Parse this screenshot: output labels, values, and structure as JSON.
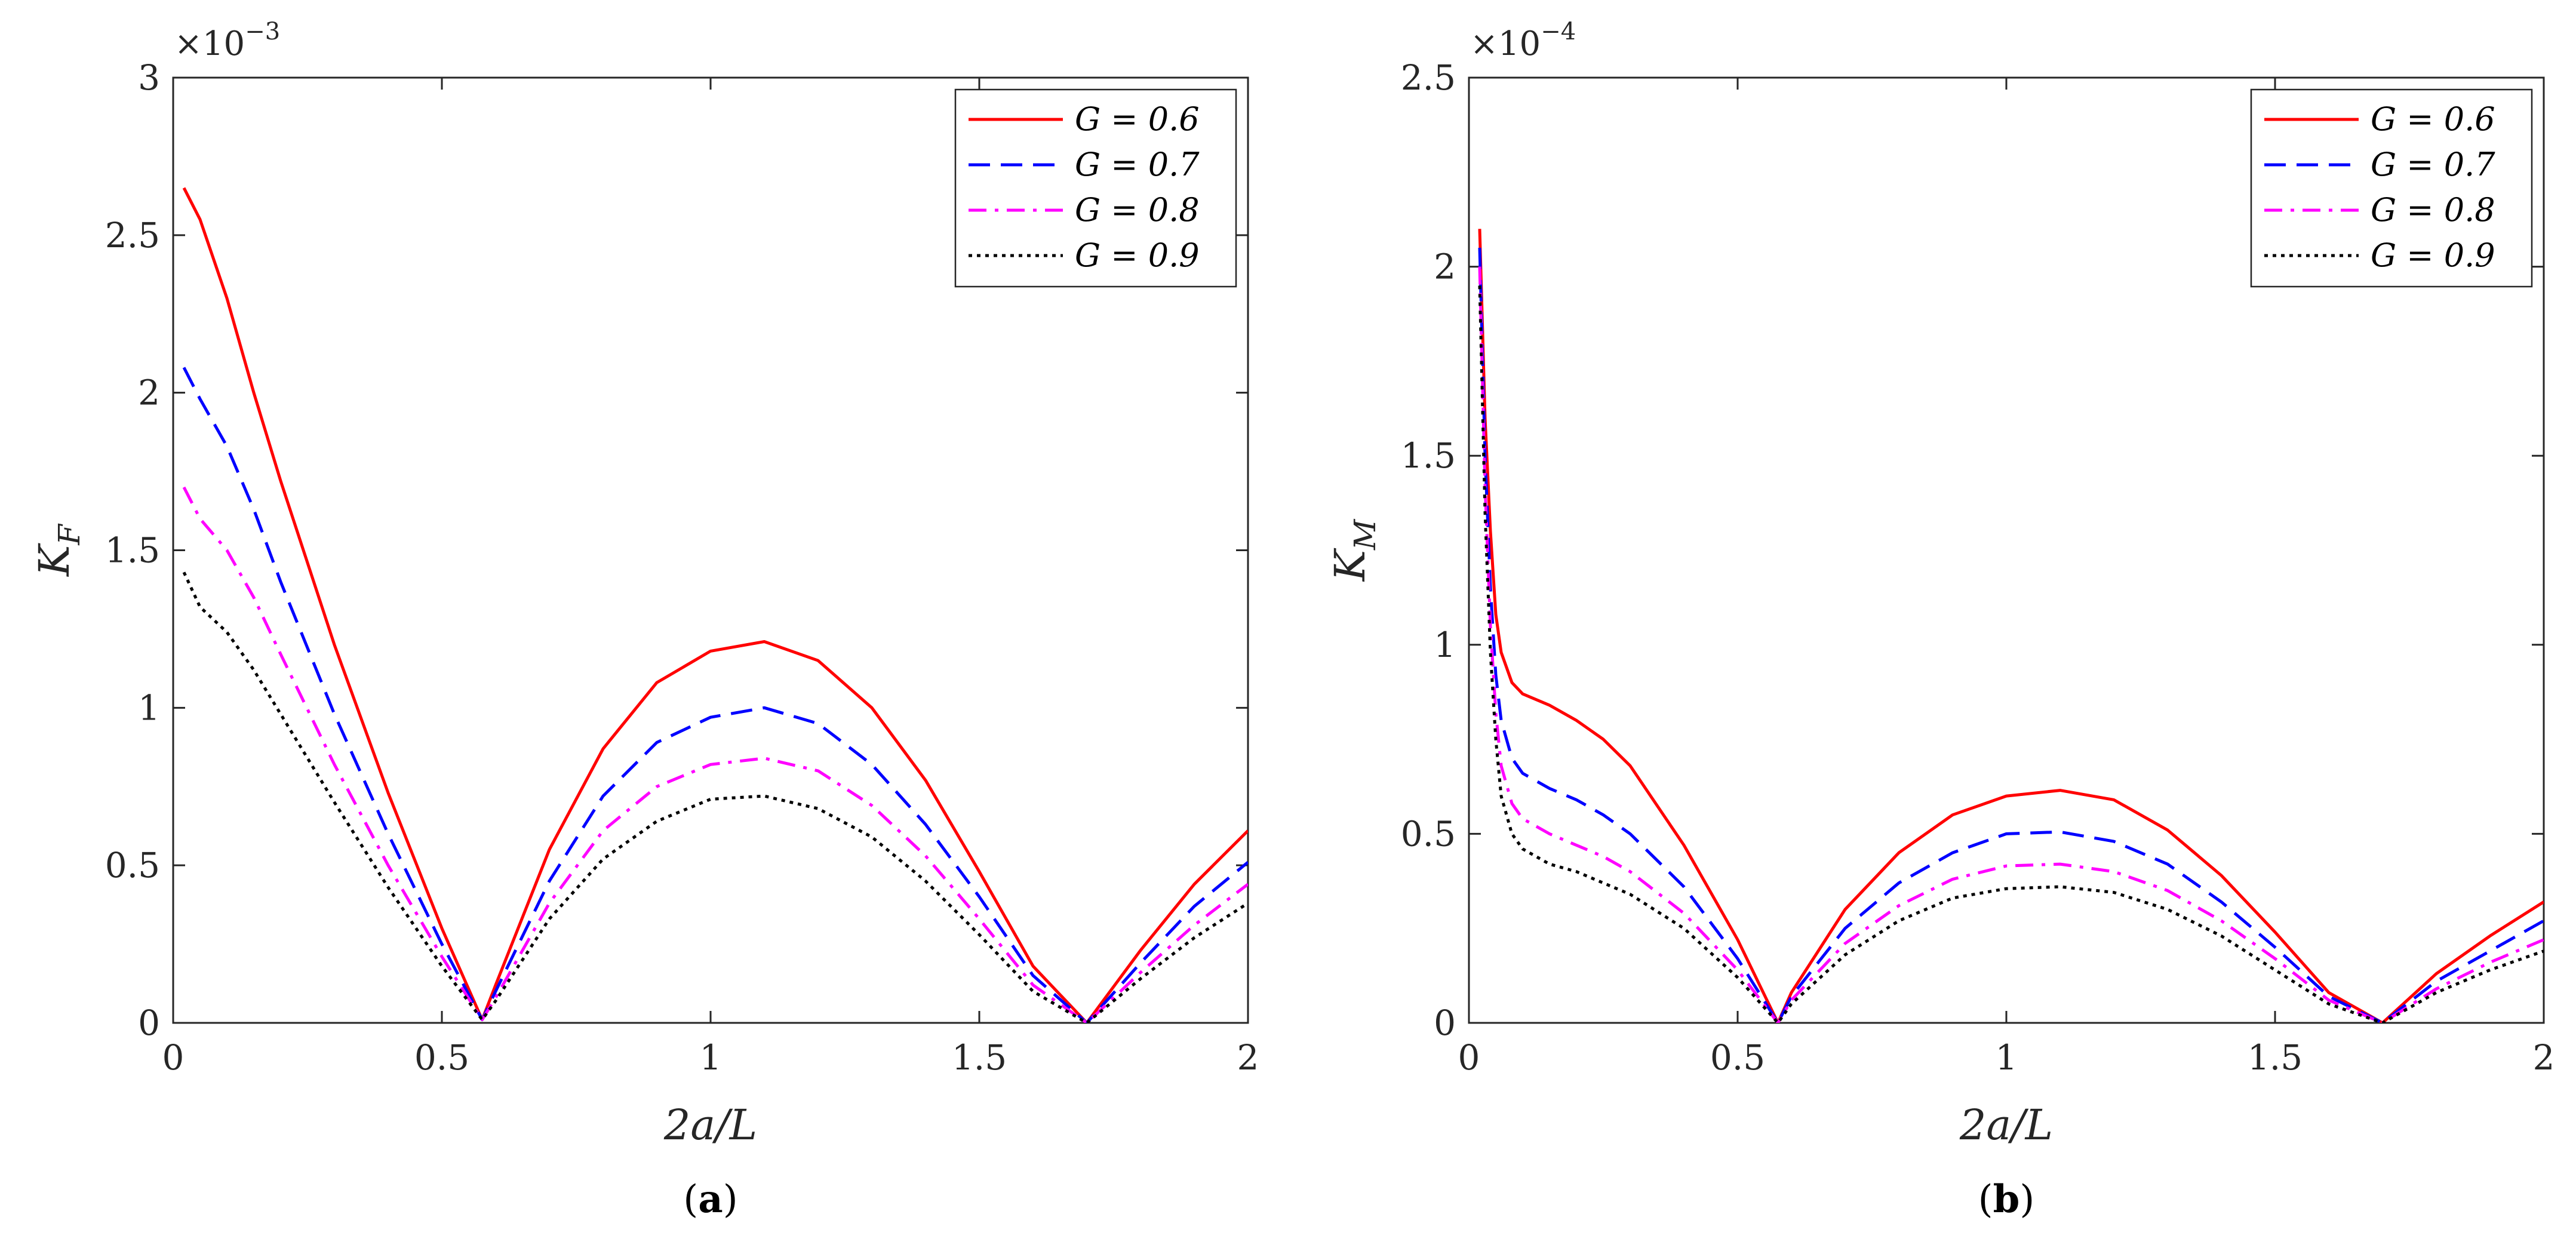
{
  "chart_data": [
    {
      "type": "line",
      "panel_label": "a",
      "xlabel": "2a/L",
      "ylabel_main": "K",
      "ylabel_sub": "F",
      "exponent_base": "×10",
      "exponent_power": "−3",
      "xlim": [
        0,
        2
      ],
      "ylim": [
        0,
        3
      ],
      "xticks": [
        "0",
        "0.5",
        "1",
        "1.5",
        "2"
      ],
      "yticks": [
        "0",
        "0.5",
        "1",
        "1.5",
        "2",
        "2.5",
        "3"
      ],
      "legend_position": "top-right",
      "series": [
        {
          "name": "G = 0.6",
          "color": "#ff0000",
          "dash": "solid",
          "x": [
            0.02,
            0.05,
            0.1,
            0.15,
            0.2,
            0.3,
            0.4,
            0.5,
            0.575,
            0.6,
            0.7,
            0.8,
            0.9,
            1.0,
            1.1,
            1.2,
            1.3,
            1.4,
            1.5,
            1.6,
            1.7,
            1.8,
            1.9,
            2.0
          ],
          "y": [
            2.65,
            2.55,
            2.3,
            2.0,
            1.72,
            1.2,
            0.73,
            0.3,
            0.01,
            0.12,
            0.55,
            0.87,
            1.08,
            1.18,
            1.21,
            1.15,
            1.0,
            0.77,
            0.48,
            0.18,
            0.0,
            0.23,
            0.44,
            0.61
          ]
        },
        {
          "name": "G = 0.7",
          "color": "#0000ff",
          "dash": "dashed",
          "x": [
            0.02,
            0.05,
            0.1,
            0.15,
            0.2,
            0.3,
            0.4,
            0.5,
            0.575,
            0.6,
            0.7,
            0.8,
            0.9,
            1.0,
            1.1,
            1.2,
            1.3,
            1.4,
            1.5,
            1.6,
            1.7,
            1.8,
            1.9,
            2.0
          ],
          "y": [
            2.08,
            1.98,
            1.83,
            1.63,
            1.4,
            0.98,
            0.6,
            0.25,
            0.01,
            0.1,
            0.45,
            0.72,
            0.89,
            0.97,
            1.0,
            0.95,
            0.82,
            0.63,
            0.4,
            0.15,
            0.0,
            0.19,
            0.37,
            0.51
          ]
        },
        {
          "name": "G = 0.8",
          "color": "#ff00ff",
          "dash": "dashdot",
          "x": [
            0.02,
            0.05,
            0.1,
            0.15,
            0.2,
            0.3,
            0.4,
            0.5,
            0.575,
            0.6,
            0.7,
            0.8,
            0.9,
            1.0,
            1.1,
            1.2,
            1.3,
            1.4,
            1.5,
            1.6,
            1.7,
            1.8,
            1.9,
            2.0
          ],
          "y": [
            1.7,
            1.6,
            1.5,
            1.35,
            1.17,
            0.82,
            0.5,
            0.21,
            0.01,
            0.08,
            0.38,
            0.61,
            0.75,
            0.82,
            0.84,
            0.8,
            0.69,
            0.53,
            0.33,
            0.12,
            0.0,
            0.16,
            0.31,
            0.44
          ]
        },
        {
          "name": "G = 0.9",
          "color": "#000000",
          "dash": "dotted",
          "x": [
            0.02,
            0.05,
            0.1,
            0.15,
            0.2,
            0.3,
            0.4,
            0.5,
            0.575,
            0.6,
            0.7,
            0.8,
            0.9,
            1.0,
            1.1,
            1.2,
            1.3,
            1.4,
            1.5,
            1.6,
            1.7,
            1.8,
            1.9,
            2.0
          ],
          "y": [
            1.43,
            1.32,
            1.24,
            1.12,
            0.98,
            0.7,
            0.43,
            0.18,
            0.01,
            0.07,
            0.33,
            0.52,
            0.64,
            0.71,
            0.72,
            0.68,
            0.59,
            0.45,
            0.28,
            0.1,
            0.0,
            0.14,
            0.27,
            0.38
          ]
        }
      ]
    },
    {
      "type": "line",
      "panel_label": "b",
      "xlabel": "2a/L",
      "ylabel_main": "K",
      "ylabel_sub": "M",
      "exponent_base": "×10",
      "exponent_power": "−4",
      "xlim": [
        0,
        2
      ],
      "ylim": [
        0,
        2.5
      ],
      "xticks": [
        "0",
        "0.5",
        "1",
        "1.5",
        "2"
      ],
      "yticks": [
        "0",
        "0.5",
        "1",
        "1.5",
        "2",
        "2.5"
      ],
      "legend_position": "top-right",
      "series": [
        {
          "name": "G = 0.6",
          "color": "#ff0000",
          "dash": "solid",
          "x": [
            0.02,
            0.03,
            0.04,
            0.05,
            0.06,
            0.08,
            0.1,
            0.15,
            0.2,
            0.25,
            0.3,
            0.4,
            0.5,
            0.575,
            0.6,
            0.7,
            0.8,
            0.9,
            1.0,
            1.1,
            1.2,
            1.3,
            1.4,
            1.5,
            1.6,
            1.7,
            1.8,
            1.9,
            2.0
          ],
          "y": [
            2.1,
            1.6,
            1.3,
            1.08,
            0.98,
            0.9,
            0.87,
            0.84,
            0.8,
            0.75,
            0.68,
            0.47,
            0.22,
            0.0,
            0.08,
            0.3,
            0.45,
            0.55,
            0.6,
            0.615,
            0.59,
            0.51,
            0.39,
            0.24,
            0.08,
            0.0,
            0.13,
            0.23,
            0.32
          ]
        },
        {
          "name": "G = 0.7",
          "color": "#0000ff",
          "dash": "dashed",
          "x": [
            0.02,
            0.03,
            0.04,
            0.05,
            0.06,
            0.08,
            0.1,
            0.15,
            0.2,
            0.25,
            0.3,
            0.4,
            0.5,
            0.575,
            0.6,
            0.7,
            0.8,
            0.9,
            1.0,
            1.1,
            1.2,
            1.3,
            1.4,
            1.5,
            1.6,
            1.7,
            1.8,
            1.9,
            2.0
          ],
          "y": [
            2.05,
            1.5,
            1.15,
            0.92,
            0.8,
            0.7,
            0.66,
            0.62,
            0.59,
            0.55,
            0.5,
            0.36,
            0.17,
            0.0,
            0.07,
            0.25,
            0.37,
            0.45,
            0.5,
            0.505,
            0.48,
            0.42,
            0.32,
            0.2,
            0.07,
            0.0,
            0.11,
            0.19,
            0.27
          ]
        },
        {
          "name": "G = 0.8",
          "color": "#ff00ff",
          "dash": "dashdot",
          "x": [
            0.02,
            0.03,
            0.04,
            0.05,
            0.06,
            0.08,
            0.1,
            0.15,
            0.2,
            0.25,
            0.3,
            0.4,
            0.5,
            0.575,
            0.6,
            0.7,
            0.8,
            0.9,
            1.0,
            1.1,
            1.2,
            1.3,
            1.4,
            1.5,
            1.6,
            1.7,
            1.8,
            1.9,
            2.0
          ],
          "y": [
            2.0,
            1.42,
            1.05,
            0.82,
            0.68,
            0.58,
            0.54,
            0.5,
            0.47,
            0.44,
            0.4,
            0.29,
            0.14,
            0.0,
            0.06,
            0.21,
            0.31,
            0.38,
            0.415,
            0.42,
            0.4,
            0.35,
            0.27,
            0.17,
            0.06,
            0.0,
            0.09,
            0.16,
            0.22
          ]
        },
        {
          "name": "G = 0.9",
          "color": "#000000",
          "dash": "dotted",
          "x": [
            0.02,
            0.03,
            0.04,
            0.05,
            0.06,
            0.08,
            0.1,
            0.15,
            0.2,
            0.25,
            0.3,
            0.4,
            0.5,
            0.575,
            0.6,
            0.7,
            0.8,
            0.9,
            1.0,
            1.1,
            1.2,
            1.3,
            1.4,
            1.5,
            1.6,
            1.7,
            1.8,
            1.9,
            2.0
          ],
          "y": [
            1.95,
            1.35,
            0.98,
            0.75,
            0.6,
            0.5,
            0.46,
            0.42,
            0.4,
            0.37,
            0.34,
            0.25,
            0.12,
            0.0,
            0.05,
            0.18,
            0.27,
            0.33,
            0.355,
            0.36,
            0.345,
            0.3,
            0.23,
            0.14,
            0.05,
            0.0,
            0.08,
            0.14,
            0.19
          ]
        }
      ]
    }
  ]
}
